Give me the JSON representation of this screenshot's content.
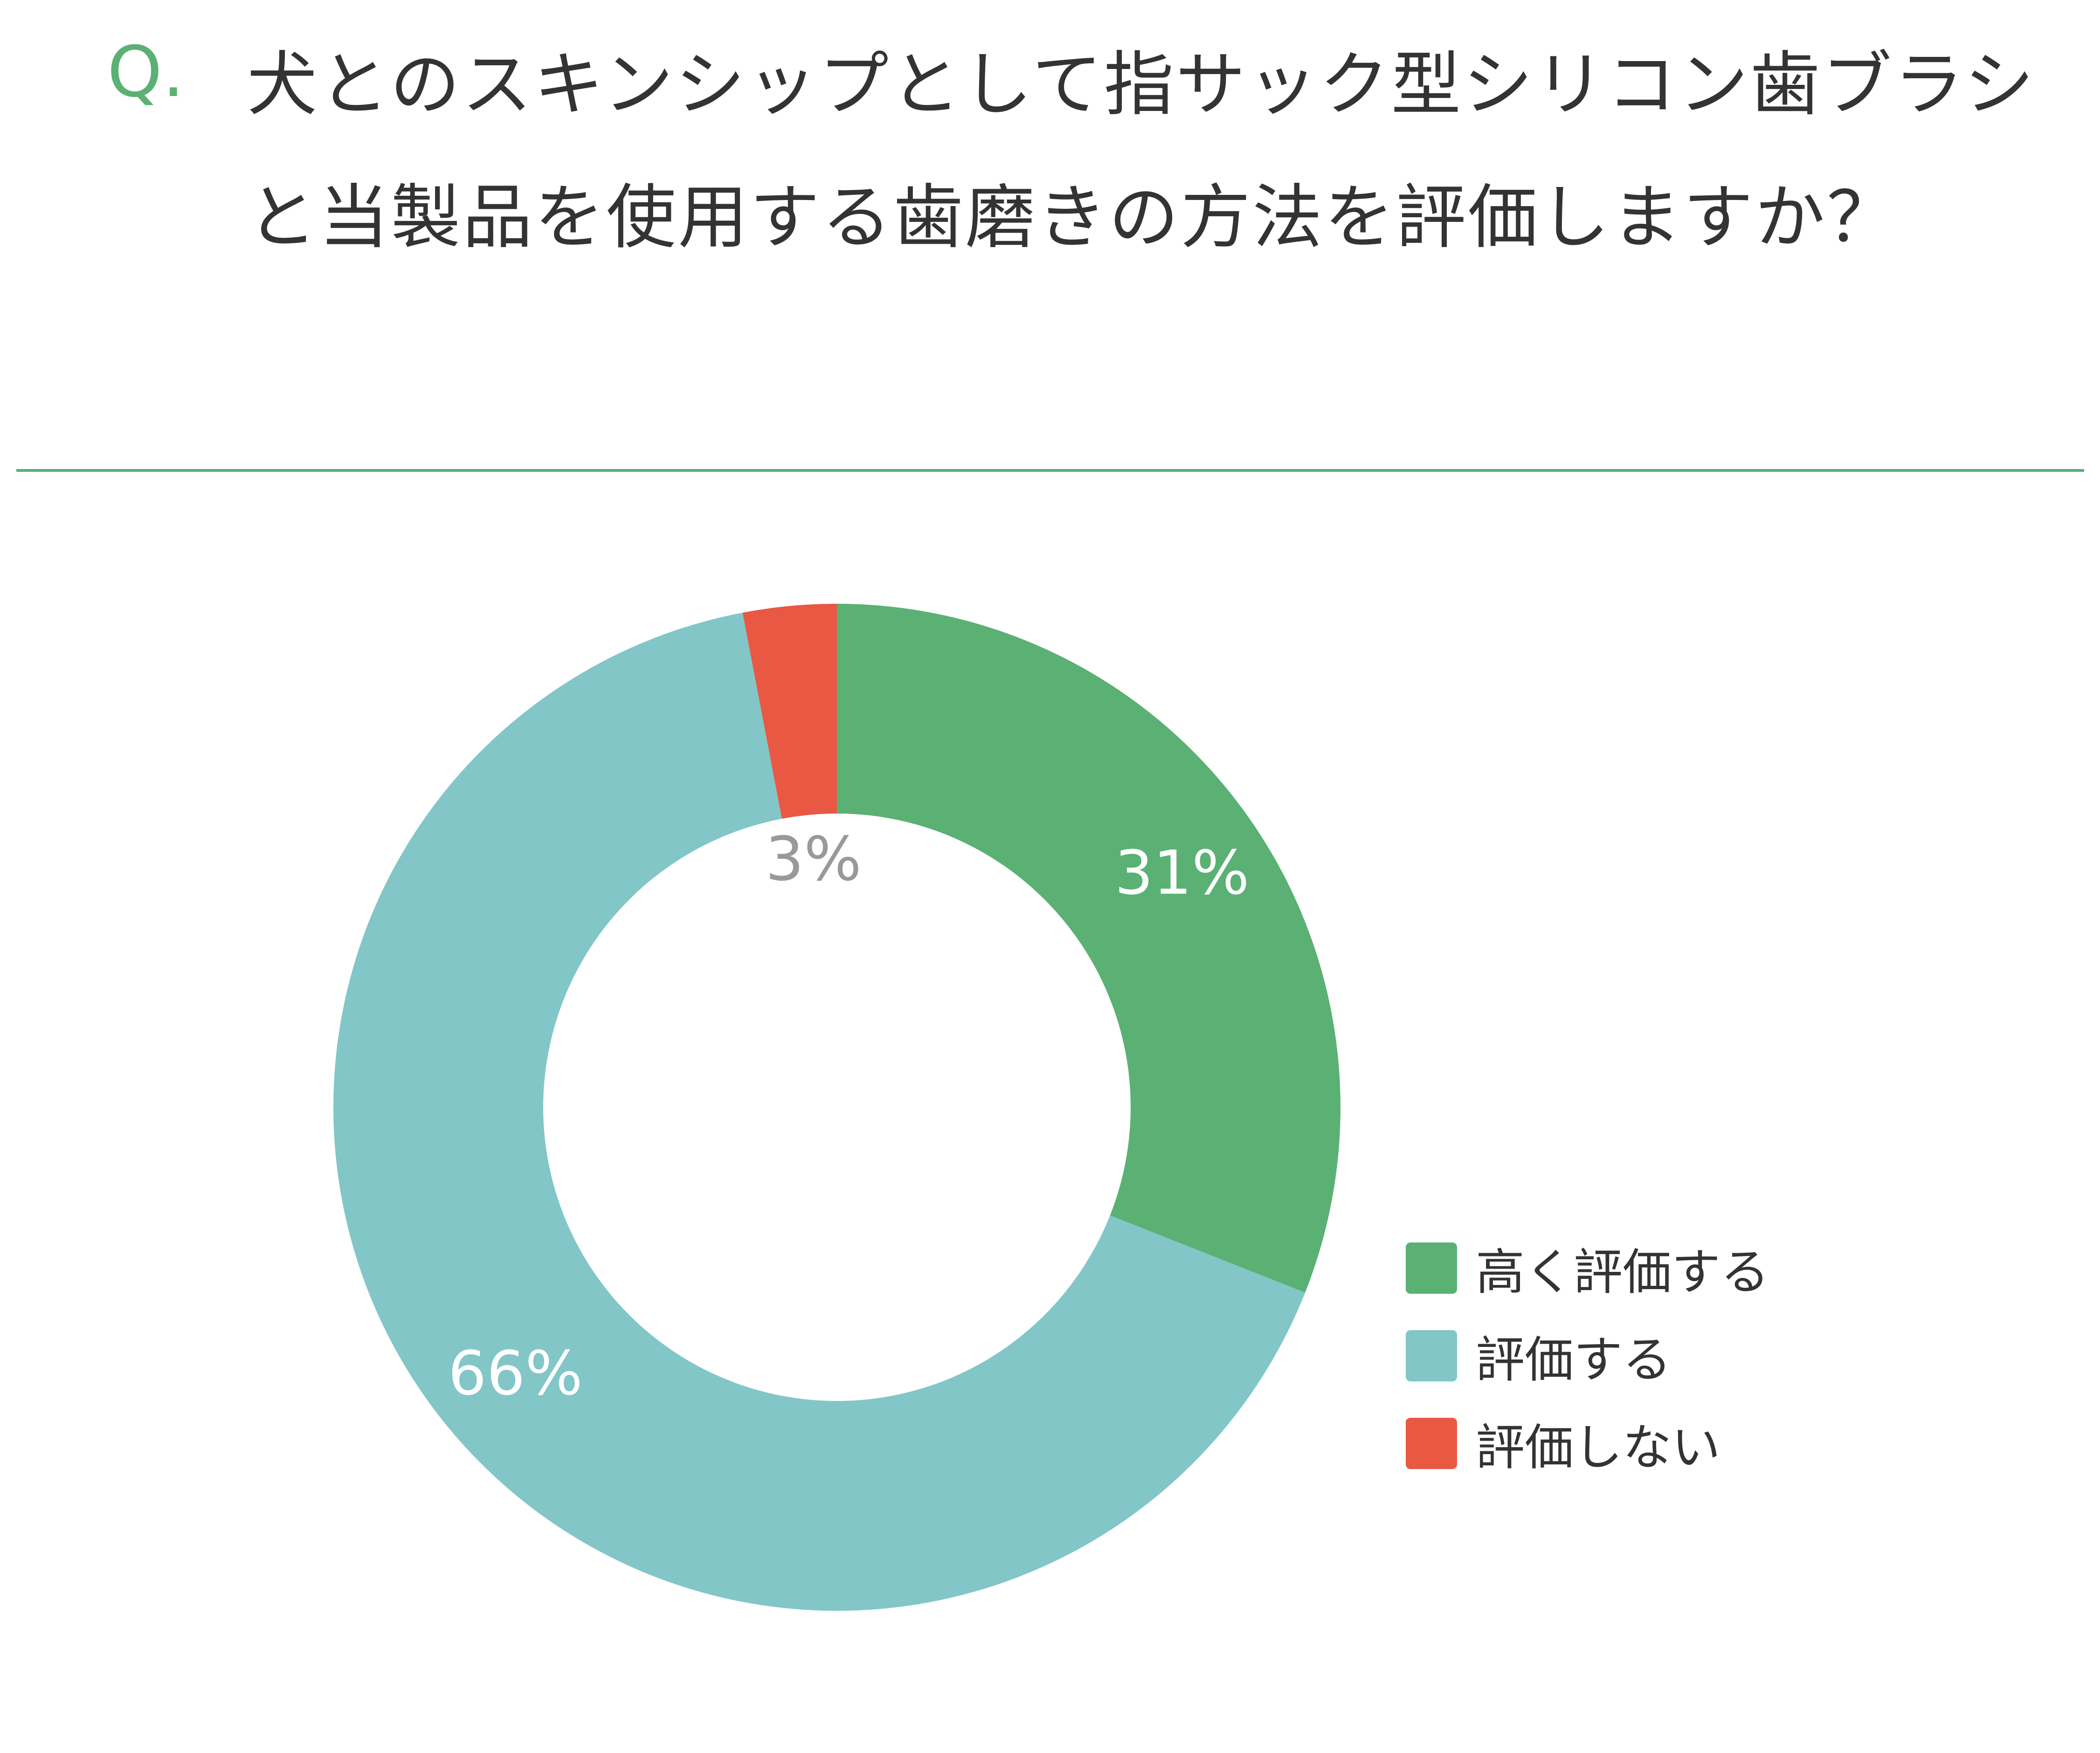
{
  "header": {
    "q_mark": "Q.",
    "question": "犬とのスキンシップとして指サック型シリコン歯ブラシと当製品を使用する歯磨きの方法を評価しますか？"
  },
  "colors": {
    "accent": "#5ab173",
    "series": [
      "#5ab173",
      "#82c6c8",
      "#e95843"
    ],
    "label_light": "#ffffff",
    "label_dark": "#999999"
  },
  "chart_data": {
    "type": "pie",
    "variant": "donut",
    "title": "",
    "categories": [
      "高く評価する",
      "評価する",
      "評価しない"
    ],
    "values": [
      31,
      66,
      3
    ],
    "labels": [
      "31%",
      "66%",
      "3%"
    ],
    "legend": "right"
  }
}
